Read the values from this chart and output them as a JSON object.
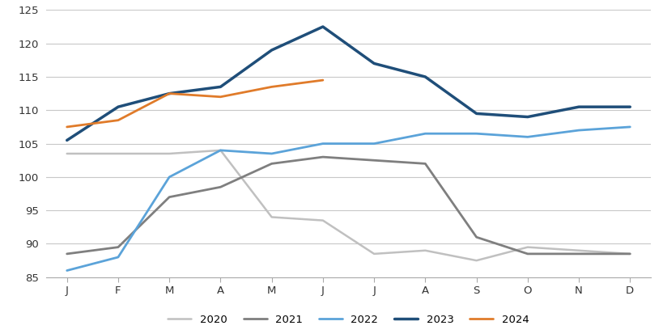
{
  "months": [
    "J",
    "F",
    "M",
    "A",
    "M",
    "J",
    "J",
    "A",
    "S",
    "O",
    "N",
    "D"
  ],
  "series": {
    "2020": [
      103.5,
      103.5,
      103.5,
      104.0,
      94.0,
      93.5,
      88.5,
      89.0,
      87.5,
      89.5,
      89.0,
      88.5
    ],
    "2021": [
      88.5,
      89.5,
      97.0,
      98.5,
      102.0,
      103.0,
      102.5,
      102.0,
      91.0,
      88.5,
      88.5,
      88.5
    ],
    "2022": [
      86.0,
      88.0,
      100.0,
      104.0,
      103.5,
      105.0,
      105.0,
      106.5,
      106.5,
      106.0,
      107.0,
      107.5
    ],
    "2023": [
      105.5,
      110.5,
      112.5,
      113.5,
      119.0,
      122.5,
      117.0,
      115.0,
      109.5,
      109.0,
      110.5,
      110.5
    ],
    "2024": [
      107.5,
      108.5,
      112.5,
      112.0,
      113.5,
      114.5,
      null,
      null,
      null,
      null,
      null,
      null
    ]
  },
  "colors": {
    "2020": "#c0c0c0",
    "2021": "#7f7f7f",
    "2022": "#5ba3d9",
    "2023": "#1f4e79",
    "2024": "#e07b2a"
  },
  "linewidths": {
    "2020": 1.8,
    "2021": 2.0,
    "2022": 2.0,
    "2023": 2.5,
    "2024": 2.0
  },
  "ylim": [
    85,
    125
  ],
  "yticks": [
    85,
    90,
    95,
    100,
    105,
    110,
    115,
    120,
    125
  ],
  "background_color": "#ffffff",
  "grid_color": "#c8c8c8"
}
